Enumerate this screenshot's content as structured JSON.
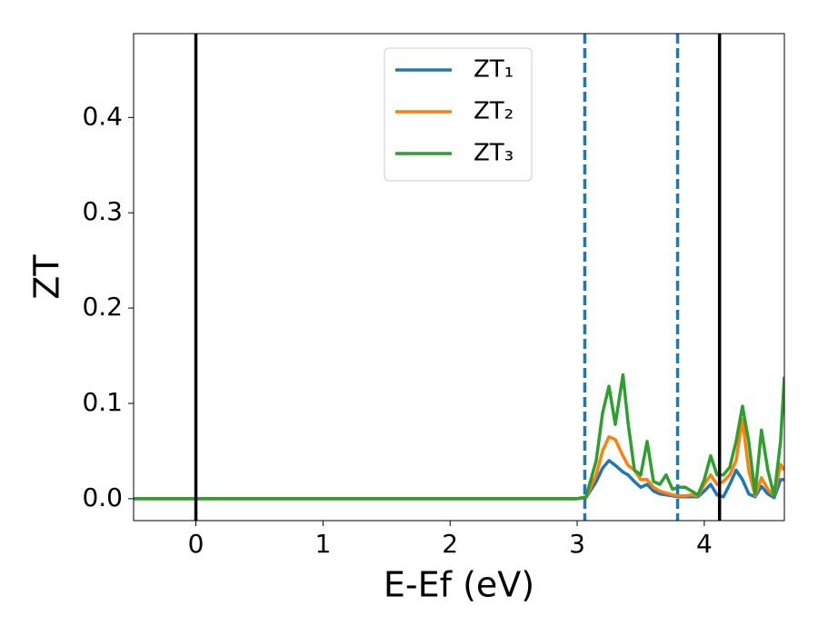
{
  "chart_data": {
    "type": "line",
    "x_label": "E-Ef (eV)",
    "y_label": "ZT",
    "xlim": [
      -0.49,
      4.63
    ],
    "ylim": [
      -0.023,
      0.488
    ],
    "xticks": [
      0,
      1,
      2,
      3,
      4
    ],
    "yticks": [
      {
        "value": 0,
        "label": "0.0"
      },
      0.1,
      0.2,
      0.3,
      0.4
    ],
    "legend": "upper center",
    "x": [
      -0.49,
      3.0,
      3.07,
      3.15,
      3.2,
      3.25,
      3.3,
      3.36,
      3.4,
      3.45,
      3.5,
      3.55,
      3.6,
      3.65,
      3.7,
      3.75,
      3.8,
      3.85,
      3.9,
      3.95,
      4.0,
      4.05,
      4.1,
      4.15,
      4.2,
      4.25,
      4.3,
      4.35,
      4.4,
      4.45,
      4.5,
      4.55,
      4.6,
      4.63
    ],
    "series": [
      {
        "name": "ZT₁",
        "color": "#1f77b4",
        "values": [
          0,
          0,
          0.001,
          0.018,
          0.032,
          0.04,
          0.035,
          0.028,
          0.025,
          0.018,
          0.012,
          0.015,
          0.008,
          0.005,
          0.004,
          0.003,
          0.002,
          0.002,
          0.002,
          0.002,
          0.008,
          0.015,
          0.004,
          0.002,
          0.015,
          0.03,
          0.02,
          0.005,
          0.002,
          0.013,
          0.005,
          0.001,
          0.02,
          0.02
        ]
      },
      {
        "name": "ZT₂",
        "color": "#ff7f0e",
        "values": [
          0,
          0,
          0.001,
          0.025,
          0.05,
          0.065,
          0.062,
          0.045,
          0.035,
          0.03,
          0.02,
          0.02,
          0.012,
          0.008,
          0.006,
          0.004,
          0.003,
          0.003,
          0.004,
          0.003,
          0.015,
          0.025,
          0.015,
          0.018,
          0.025,
          0.04,
          0.083,
          0.03,
          0.003,
          0.022,
          0.01,
          0.003,
          0.036,
          0.03
        ]
      },
      {
        "name": "ZT₃",
        "color": "#2ca02c",
        "values": [
          0,
          0,
          0.002,
          0.04,
          0.09,
          0.118,
          0.078,
          0.13,
          0.08,
          0.03,
          0.025,
          0.06,
          0.018,
          0.015,
          0.025,
          0.01,
          0.012,
          0.012,
          0.008,
          0.004,
          0.02,
          0.045,
          0.025,
          0.025,
          0.033,
          0.06,
          0.097,
          0.06,
          0.005,
          0.072,
          0.03,
          0.003,
          0.06,
          0.128
        ]
      }
    ],
    "vlines": [
      {
        "x": 0,
        "color": "#000000",
        "style": "solid"
      },
      {
        "x": 4.12,
        "color": "#000000",
        "style": "solid"
      },
      {
        "x": 3.06,
        "color": "#1f77b4",
        "style": "dashed"
      },
      {
        "x": 3.79,
        "color": "#1f77b4",
        "style": "dashed"
      }
    ]
  }
}
